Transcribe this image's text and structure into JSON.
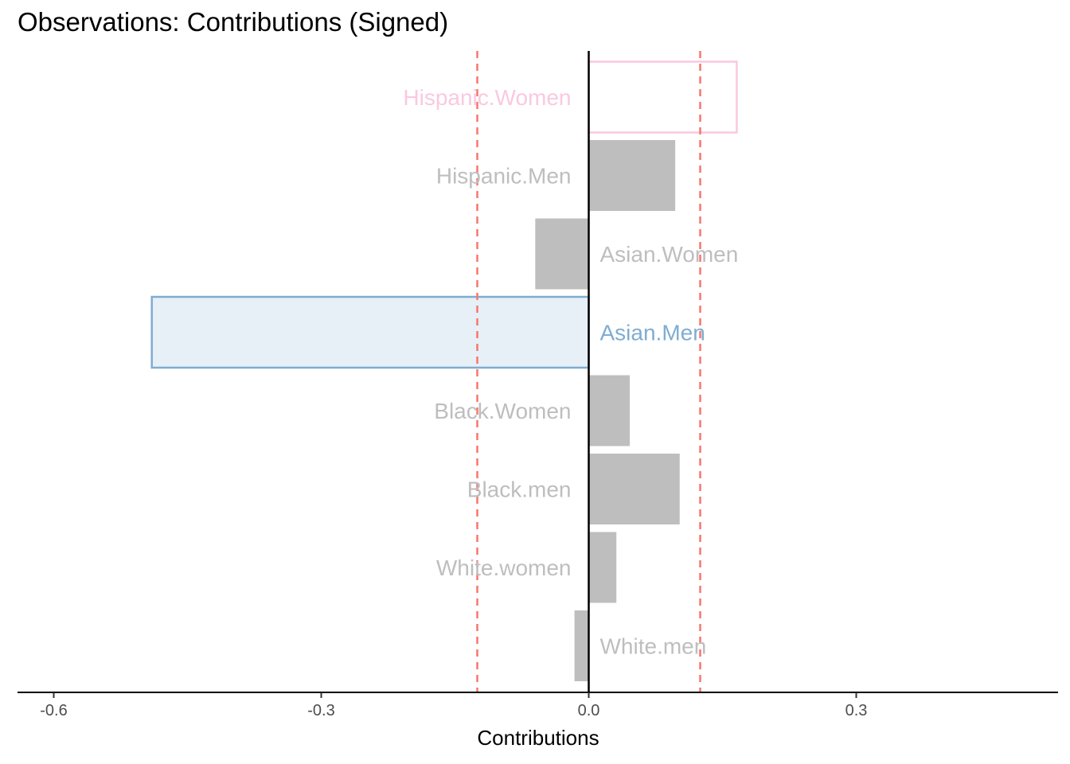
{
  "chart_data": {
    "type": "bar",
    "orientation": "horizontal",
    "title": "Observations: Contributions (Signed)",
    "xlabel": "Contributions",
    "ylabel": "",
    "xlim": [
      -0.605,
      0.53
    ],
    "xticks": [
      {
        "value": -0.6,
        "label": "-0.6"
      },
      {
        "value": -0.3,
        "label": "-0.3"
      },
      {
        "value": 0.0,
        "label": "0.0"
      },
      {
        "value": 0.3,
        "label": "0.3"
      }
    ],
    "threshold_lines": [
      -0.125,
      0.125
    ],
    "threshold_color": "#f8766d",
    "zero_line_color": "#000000",
    "categories": [
      "Hispanic.Women",
      "Hispanic.Men",
      "Asian.Women",
      "Asian.Men",
      "Black.Women",
      "Black.men",
      "White.women",
      "White.men"
    ],
    "values": [
      0.166,
      0.097,
      -0.06,
      -0.49,
      0.046,
      0.102,
      0.031,
      -0.016
    ],
    "bars": [
      {
        "label": "Hispanic.Women",
        "value": 0.166,
        "highlight": true,
        "fill": "#ffffff",
        "stroke": "#f9c9e0",
        "text_color": "#f9c9e0"
      },
      {
        "label": "Hispanic.Men",
        "value": 0.097,
        "highlight": false,
        "fill": "#bebebe",
        "stroke": "none",
        "text_color": "#bebebe"
      },
      {
        "label": "Asian.Women",
        "value": -0.06,
        "highlight": false,
        "fill": "#bebebe",
        "stroke": "none",
        "text_color": "#bebebe"
      },
      {
        "label": "Asian.Men",
        "value": -0.49,
        "highlight": true,
        "fill": "#e7eff7",
        "stroke": "#7fadd1",
        "text_color": "#7fadd1"
      },
      {
        "label": "Black.Women",
        "value": 0.046,
        "highlight": false,
        "fill": "#bebebe",
        "stroke": "none",
        "text_color": "#bebebe"
      },
      {
        "label": "Black.men",
        "value": 0.102,
        "highlight": false,
        "fill": "#bebebe",
        "stroke": "none",
        "text_color": "#bebebe"
      },
      {
        "label": "White.women",
        "value": 0.031,
        "highlight": false,
        "fill": "#bebebe",
        "stroke": "none",
        "text_color": "#bebebe"
      },
      {
        "label": "White.men",
        "value": -0.016,
        "highlight": false,
        "fill": "#bebebe",
        "stroke": "none",
        "text_color": "#bebebe"
      }
    ]
  }
}
